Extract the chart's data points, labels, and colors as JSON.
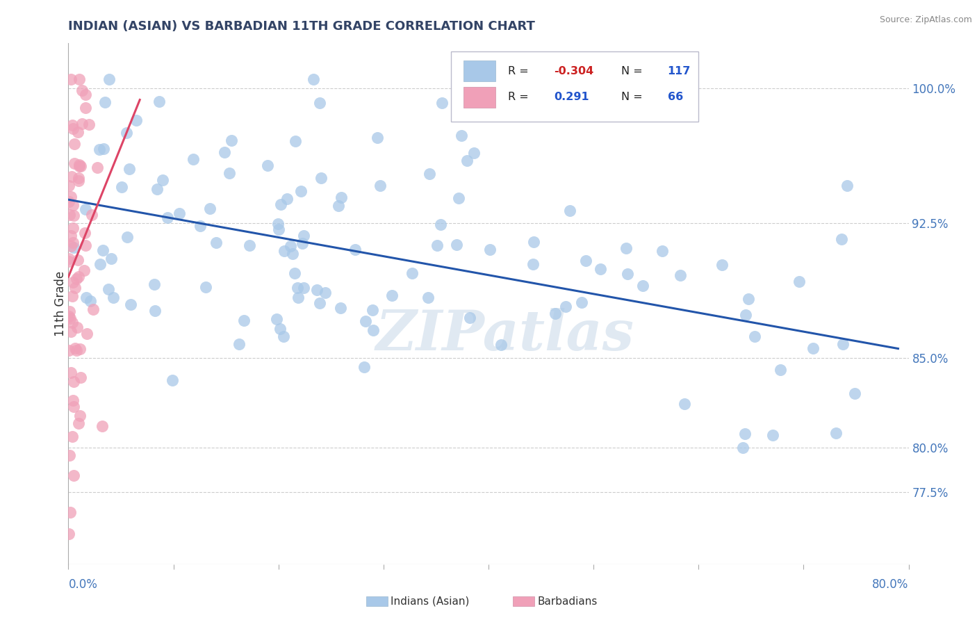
{
  "title": "INDIAN (ASIAN) VS BARBADIAN 11TH GRADE CORRELATION CHART",
  "source_text": "Source: ZipAtlas.com",
  "ylabel": "11th Grade",
  "xlim": [
    0.0,
    0.8
  ],
  "ylim": [
    0.735,
    1.025
  ],
  "ytick_vals": [
    0.775,
    0.8,
    0.85,
    0.925,
    1.0
  ],
  "ytick_labels": [
    "77.5%",
    "80.0%",
    "85.0%",
    "92.5%",
    "100.0%"
  ],
  "blue_color": "#a8c8e8",
  "pink_color": "#f0a0b8",
  "blue_line_color": "#2255aa",
  "pink_line_color": "#dd4466",
  "watermark": "ZIPatlas",
  "blue_r": "-0.304",
  "blue_n": "117",
  "pink_r": "0.291",
  "pink_n": "66",
  "blue_slope": -0.105,
  "blue_intercept": 0.938,
  "pink_slope": 1.45,
  "pink_intercept": 0.895,
  "blue_seed": 12,
  "pink_seed": 7
}
